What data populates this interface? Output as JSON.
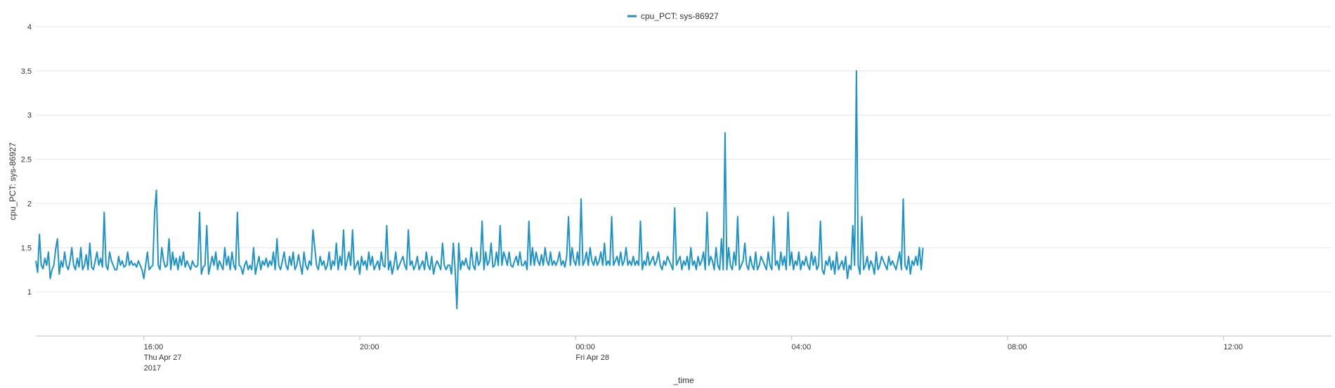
{
  "chart_data": {
    "type": "line",
    "xlabel": "_time",
    "ylabel": "cpu_PCT: sys-86927",
    "ylim": [
      0.5,
      4
    ],
    "yticks": [
      "1",
      "1.5",
      "2",
      "2.5",
      "3",
      "3.5",
      "4"
    ],
    "xlim": [
      "2017-04-27T14:00",
      "2017-04-28T14:00"
    ],
    "xticks": [
      {
        "time": "2017-04-27T16:00",
        "lines": [
          "16:00",
          "Thu Apr 27",
          "2017"
        ]
      },
      {
        "time": "2017-04-27T20:00",
        "lines": [
          "20:00"
        ]
      },
      {
        "time": "2017-04-28T00:00",
        "lines": [
          "00:00",
          "Fri Apr 28"
        ]
      },
      {
        "time": "2017-04-28T04:00",
        "lines": [
          "04:00"
        ]
      },
      {
        "time": "2017-04-28T08:00",
        "lines": [
          "08:00"
        ]
      },
      {
        "time": "2017-04-28T12:00",
        "lines": [
          "12:00"
        ]
      }
    ],
    "legend": {
      "position": "top"
    },
    "grid": {
      "y": true,
      "x": false
    },
    "series": [
      {
        "name": "cpu_PCT: sys-86927",
        "color": "#1e93c6",
        "interval_minutes": 2,
        "start": "2017-04-27T14:00",
        "values": [
          1.35,
          1.22,
          1.65,
          1.3,
          1.26,
          1.38,
          1.3,
          1.45,
          1.15,
          1.25,
          1.3,
          1.48,
          1.6,
          1.2,
          1.35,
          1.28,
          1.45,
          1.3,
          1.25,
          1.35,
          1.5,
          1.3,
          1.25,
          1.38,
          1.28,
          1.5,
          1.25,
          1.3,
          1.42,
          1.25,
          1.55,
          1.28,
          1.25,
          1.35,
          1.45,
          1.3,
          1.38,
          1.28,
          1.9,
          1.3,
          1.25,
          1.45,
          1.35,
          1.3,
          1.25,
          1.25,
          1.4,
          1.3,
          1.35,
          1.28,
          1.3,
          1.45,
          1.3,
          1.35,
          1.3,
          1.32,
          1.28,
          1.35,
          1.3,
          1.25,
          1.15,
          1.3,
          1.45,
          1.25,
          1.28,
          1.3,
          1.9,
          2.15,
          1.3,
          1.25,
          1.5,
          1.35,
          1.28,
          1.3,
          1.6,
          1.25,
          1.45,
          1.3,
          1.38,
          1.25,
          1.4,
          1.3,
          1.45,
          1.28,
          1.35,
          1.3,
          1.25,
          1.35,
          1.3,
          1.28,
          1.3,
          1.9,
          1.2,
          1.28,
          1.3,
          1.75,
          1.2,
          1.3,
          1.4,
          1.3,
          1.45,
          1.25,
          1.35,
          1.3,
          1.25,
          1.5,
          1.3,
          1.4,
          1.25,
          1.45,
          1.3,
          1.25,
          1.9,
          1.3,
          1.28,
          1.2,
          1.3,
          1.35,
          1.25,
          1.3,
          1.25,
          1.5,
          1.2,
          1.3,
          1.4,
          1.25,
          1.35,
          1.3,
          1.38,
          1.28,
          1.35,
          1.3,
          1.45,
          1.25,
          1.6,
          1.3,
          1.25,
          1.35,
          1.45,
          1.3,
          1.25,
          1.4,
          1.3,
          1.45,
          1.25,
          1.3,
          1.42,
          1.3,
          1.2,
          1.45,
          1.3,
          1.25,
          1.35,
          1.3,
          1.7,
          1.5,
          1.3,
          1.25,
          1.4,
          1.3,
          1.35,
          1.25,
          1.3,
          1.45,
          1.25,
          1.35,
          1.3,
          1.55,
          1.25,
          1.4,
          1.3,
          1.7,
          1.25,
          1.35,
          1.45,
          1.3,
          1.7,
          1.25,
          1.3,
          1.35,
          1.2,
          1.4,
          1.3,
          1.35,
          1.25,
          1.45,
          1.3,
          1.4,
          1.25,
          1.3,
          1.35,
          1.25,
          1.45,
          1.3,
          1.28,
          1.75,
          1.25,
          1.35,
          1.2,
          1.3,
          1.45,
          1.25,
          1.3,
          1.35,
          1.4,
          1.3,
          1.25,
          1.7,
          1.3,
          1.35,
          1.25,
          1.3,
          1.4,
          1.25,
          1.3,
          1.35,
          1.25,
          1.45,
          1.3,
          1.25,
          1.4,
          1.2,
          1.3,
          1.35,
          1.3,
          1.25,
          1.55,
          1.3,
          1.25,
          1.3,
          1.3,
          1.2,
          1.55,
          1.25,
          0.81,
          1.55,
          1.25,
          1.35,
          1.3,
          1.38,
          1.28,
          1.25,
          1.5,
          1.3,
          1.25,
          1.45,
          1.3,
          1.35,
          1.8,
          1.25,
          1.45,
          1.3,
          1.35,
          1.55,
          1.28,
          1.3,
          1.45,
          1.3,
          1.75,
          1.3,
          1.45,
          1.38,
          1.3,
          1.45,
          1.3,
          1.28,
          1.35,
          1.4,
          1.3,
          1.45,
          1.3,
          1.3,
          1.35,
          1.25,
          1.8,
          1.3,
          1.5,
          1.3,
          1.45,
          1.35,
          1.3,
          1.42,
          1.3,
          1.5,
          1.35,
          1.3,
          1.45,
          1.3,
          1.35,
          1.3,
          1.35,
          1.45,
          1.3,
          1.35,
          1.28,
          1.4,
          1.85,
          1.3,
          1.5,
          1.35,
          1.3,
          1.45,
          1.3,
          2.05,
          1.3,
          1.35,
          1.45,
          1.3,
          1.5,
          1.35,
          1.3,
          1.4,
          1.3,
          1.35,
          1.45,
          1.3,
          1.55,
          1.3,
          1.35,
          1.3,
          1.85,
          1.3,
          1.35,
          1.4,
          1.3,
          1.45,
          1.3,
          1.35,
          1.5,
          1.3,
          1.35,
          1.3,
          1.4,
          1.3,
          1.35,
          1.3,
          1.8,
          1.25,
          1.35,
          1.3,
          1.45,
          1.3,
          1.35,
          1.4,
          1.3,
          1.35,
          1.45,
          1.3,
          1.25,
          1.35,
          1.3,
          1.4,
          1.35,
          1.3,
          1.25,
          1.95,
          1.3,
          1.35,
          1.4,
          1.25,
          1.35,
          1.3,
          1.4,
          1.25,
          1.5,
          1.3,
          1.35,
          1.25,
          1.4,
          1.3,
          1.35,
          1.45,
          1.25,
          1.9,
          1.3,
          1.4,
          1.35,
          1.25,
          1.5,
          1.3,
          1.25,
          1.6,
          1.25,
          2.8,
          1.25,
          1.5,
          1.3,
          1.25,
          1.45,
          1.3,
          1.85,
          1.25,
          1.3,
          1.35,
          1.55,
          1.3,
          1.25,
          1.4,
          1.3,
          1.25,
          1.45,
          1.25,
          1.3,
          1.4,
          1.35,
          1.3,
          1.25,
          1.45,
          1.3,
          1.25,
          1.85,
          1.3,
          1.35,
          1.25,
          1.45,
          1.3,
          1.4,
          1.25,
          1.9,
          1.3,
          1.45,
          1.25,
          1.35,
          1.3,
          1.45,
          1.25,
          1.35,
          1.3,
          1.4,
          1.3,
          1.25,
          1.45,
          1.3,
          1.4,
          1.25,
          1.3,
          1.8,
          1.25,
          1.2,
          1.35,
          1.3,
          1.4,
          1.25,
          1.35,
          1.2,
          1.45,
          1.25,
          1.3,
          1.35,
          1.25,
          1.4,
          1.15,
          1.3,
          1.25,
          1.75,
          1.3,
          3.5,
          1.3,
          1.2,
          1.85,
          1.25,
          1.3,
          1.4,
          1.25,
          1.35,
          1.3,
          1.2,
          1.45,
          1.25,
          1.3,
          1.4,
          1.35,
          1.3,
          1.25,
          1.4,
          1.3,
          1.35,
          1.3,
          1.25,
          1.35,
          1.45,
          1.25,
          2.05,
          1.3,
          1.25,
          1.4,
          1.2,
          1.35,
          1.3,
          1.4,
          1.3,
          1.5,
          1.25,
          1.5
        ]
      }
    ]
  }
}
